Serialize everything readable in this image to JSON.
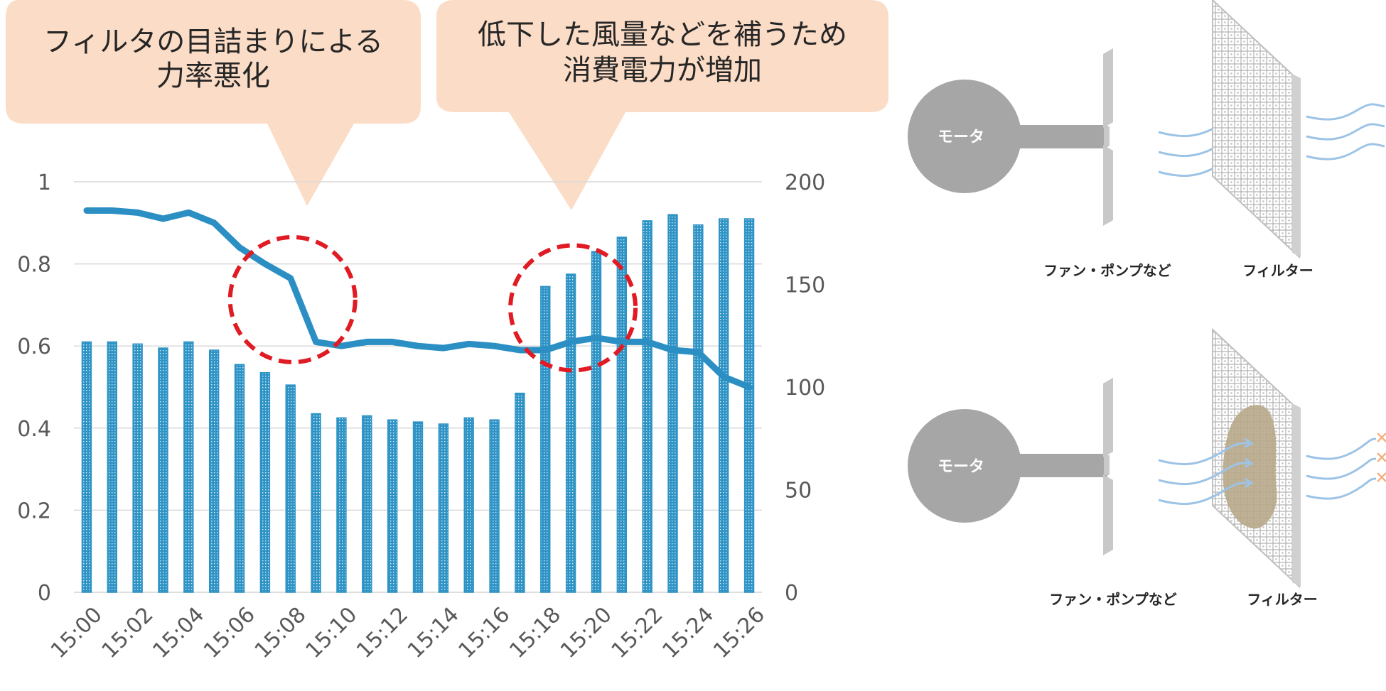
{
  "callouts": {
    "left": {
      "line1": "フィルタの目詰まりによる",
      "line2": "力率悪化"
    },
    "right": {
      "line1": "低下した風量などを補うため",
      "line2": "消費電力が増加"
    }
  },
  "colors": {
    "callout_fill": "#fbdcc6",
    "bar": "#2e93c5",
    "line": "#2b8fc4",
    "circle": "#e01b24",
    "grid": "#d9d9d9",
    "axis_text": "#595959",
    "motor": "#a6a6a6",
    "shaft": "#a6a6a6",
    "fan": "#c8c8c8",
    "filter": "#d9d9d9",
    "arrow": "#9dc3e6",
    "clog": "#b8a88a",
    "blocked": "#f4b183"
  },
  "chart_data": {
    "type": "bar",
    "title": "",
    "xlabel": "",
    "ylabel": "",
    "x": [
      "15:00",
      "15:01",
      "15:02",
      "15:03",
      "15:04",
      "15:05",
      "15:06",
      "15:07",
      "15:08",
      "15:09",
      "15:10",
      "15:11",
      "15:12",
      "15:13",
      "15:14",
      "15:15",
      "15:16",
      "15:17",
      "15:18",
      "15:19",
      "15:20",
      "15:21",
      "15:22",
      "15:23",
      "15:24",
      "15:25",
      "15:26"
    ],
    "x_tick_labels": [
      "15:00",
      "15:02",
      "15:04",
      "15:06",
      "15:08",
      "15:10",
      "15:12",
      "15:14",
      "15:16",
      "15:18",
      "15:20",
      "15:22",
      "15:24",
      "15:26"
    ],
    "series": [
      {
        "chart_type": "bar",
        "axis": "secondary",
        "values": [
          122,
          122,
          121,
          119,
          122,
          118,
          111,
          107,
          101,
          87,
          85,
          86,
          84,
          83,
          82,
          85,
          84,
          97,
          149,
          155,
          166,
          173,
          181,
          184,
          179,
          182,
          182
        ]
      },
      {
        "chart_type": "line",
        "axis": "primary",
        "values": [
          0.93,
          0.93,
          0.925,
          0.91,
          0.925,
          0.9,
          0.84,
          0.8,
          0.765,
          0.61,
          0.6,
          0.61,
          0.61,
          0.6,
          0.595,
          0.605,
          0.6,
          0.59,
          0.59,
          0.61,
          0.62,
          0.61,
          0.61,
          0.59,
          0.585,
          0.525,
          0.5
        ]
      }
    ],
    "y_primary": {
      "ylim": [
        0,
        1
      ],
      "ticks": [
        "0",
        "0.2",
        "0.4",
        "0.6",
        "0.8",
        "1"
      ]
    },
    "y_secondary": {
      "ylim": [
        0,
        200
      ],
      "ticks": [
        "0",
        "50",
        "100",
        "150",
        "200"
      ]
    },
    "grid": true,
    "legend": "none",
    "annotations": [
      {
        "type": "dashed-circle",
        "center_x": "15:08",
        "center_y_primary": 0.77
      },
      {
        "type": "dashed-circle",
        "center_x": "15:19",
        "center_y_primary": 0.75
      }
    ]
  },
  "diagram": {
    "top": {
      "motor_label": "モータ",
      "fan_label": "ファン・ポンプなど",
      "filter_label": "フィルター"
    },
    "bottom": {
      "motor_label": "モータ",
      "fan_label": "ファン・ポンプなど",
      "filter_label": "フィルター"
    }
  }
}
